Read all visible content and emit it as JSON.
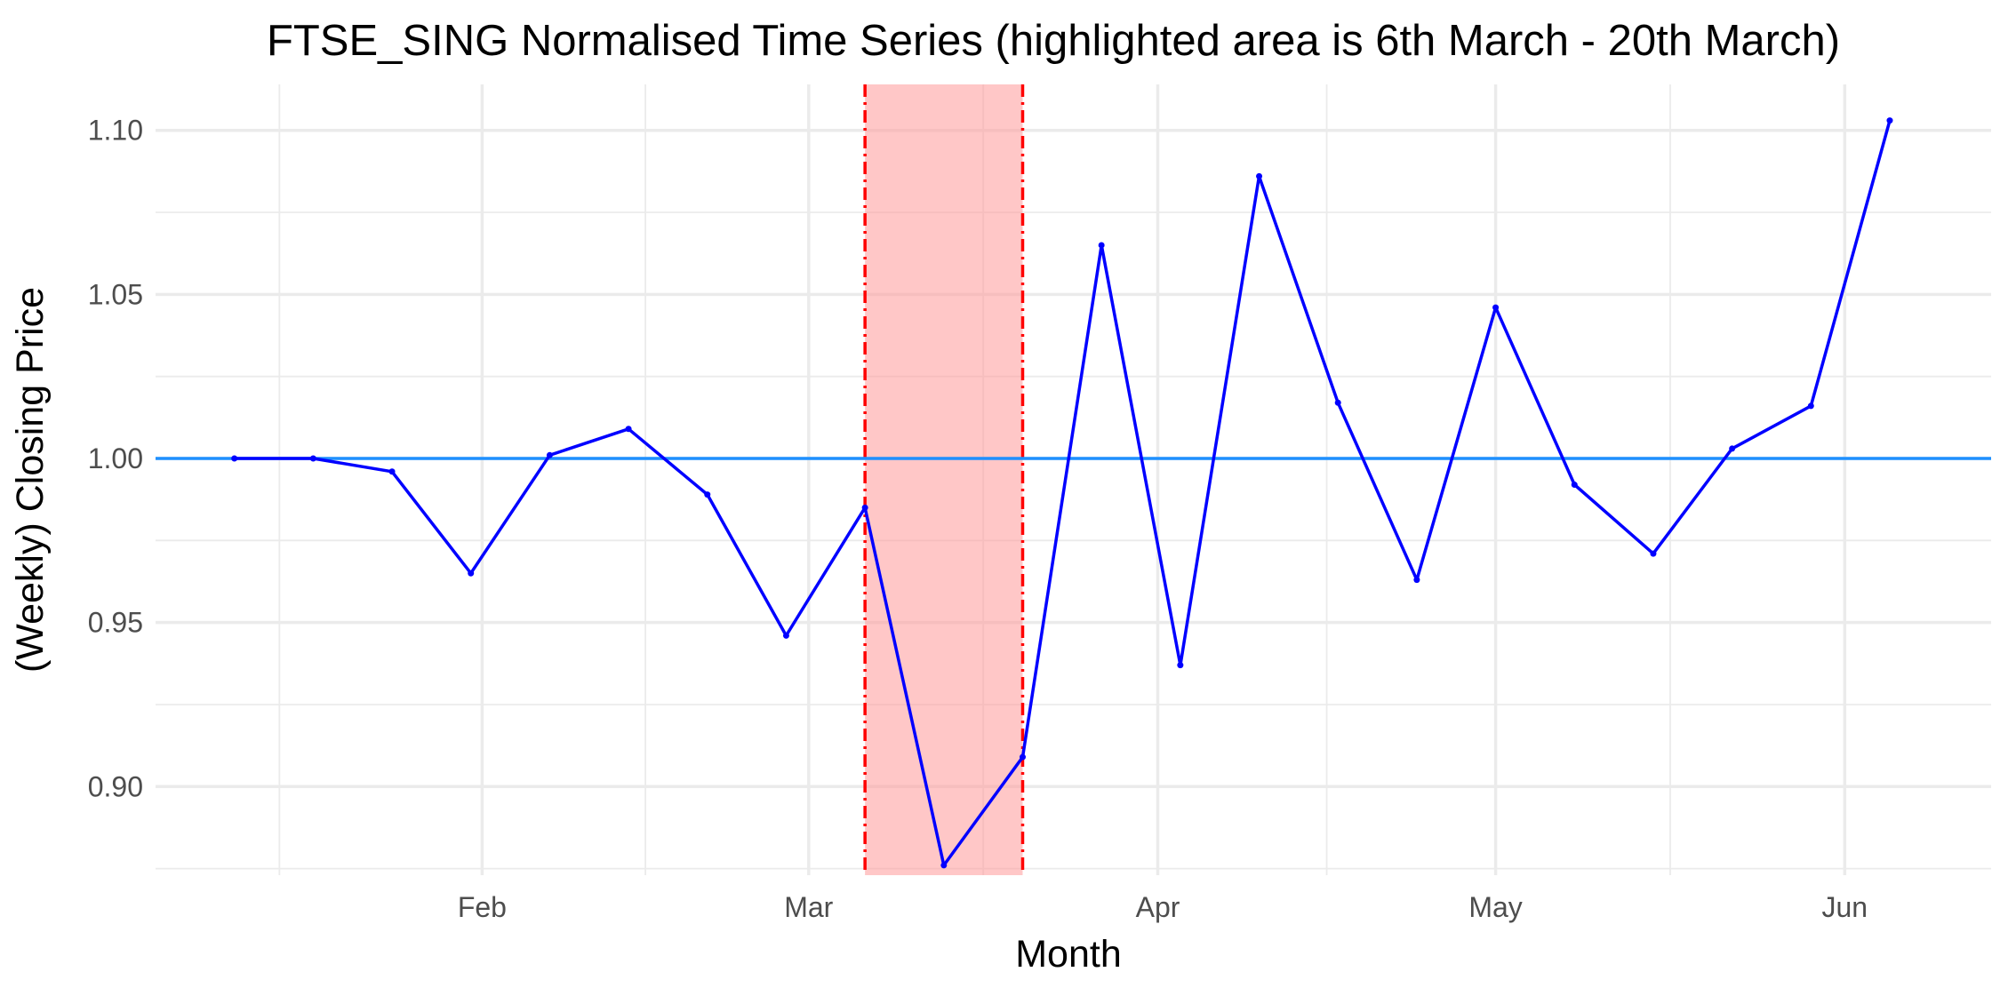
{
  "chart_data": {
    "type": "line",
    "title": "FTSE_SING Normalised Time Series (highlighted area is 6th March - 20th March)",
    "xlabel": "Month",
    "ylabel": "(Weekly) Closing Price",
    "x_ticks": [
      {
        "date": "2020-02-01",
        "label": "Feb"
      },
      {
        "date": "2020-03-01",
        "label": "Mar"
      },
      {
        "date": "2020-04-01",
        "label": "Apr"
      },
      {
        "date": "2020-05-01",
        "label": "May"
      },
      {
        "date": "2020-06-01",
        "label": "Jun"
      }
    ],
    "xlim": [
      "2020-01-03",
      "2020-06-14"
    ],
    "y_ticks": [
      0.9,
      0.95,
      1.0,
      1.05,
      1.1
    ],
    "ylim": [
      0.873,
      1.114
    ],
    "grid": true,
    "series": [
      {
        "color": "#0000ff",
        "points": [
          {
            "x": "2020-01-10",
            "y": 1.0
          },
          {
            "x": "2020-01-17",
            "y": 1.0
          },
          {
            "x": "2020-01-24",
            "y": 0.996
          },
          {
            "x": "2020-01-31",
            "y": 0.965
          },
          {
            "x": "2020-02-07",
            "y": 1.001
          },
          {
            "x": "2020-02-14",
            "y": 1.009
          },
          {
            "x": "2020-02-21",
            "y": 0.989
          },
          {
            "x": "2020-02-28",
            "y": 0.946
          },
          {
            "x": "2020-03-06",
            "y": 0.985
          },
          {
            "x": "2020-03-13",
            "y": 0.876
          },
          {
            "x": "2020-03-20",
            "y": 0.909
          },
          {
            "x": "2020-03-27",
            "y": 1.065
          },
          {
            "x": "2020-04-03",
            "y": 0.937
          },
          {
            "x": "2020-04-10",
            "y": 1.086
          },
          {
            "x": "2020-04-17",
            "y": 1.017
          },
          {
            "x": "2020-04-24",
            "y": 0.963
          },
          {
            "x": "2020-05-01",
            "y": 1.046
          },
          {
            "x": "2020-05-08",
            "y": 0.992
          },
          {
            "x": "2020-05-15",
            "y": 0.971
          },
          {
            "x": "2020-05-22",
            "y": 1.003
          },
          {
            "x": "2020-05-29",
            "y": 1.016
          },
          {
            "x": "2020-06-05",
            "y": 1.103
          }
        ]
      }
    ],
    "reference_line": {
      "y": 1.0,
      "color": "#1e90ff"
    },
    "highlight": {
      "start": "2020-03-06",
      "end": "2020-03-20",
      "fill_color": "#ff9999",
      "border_color": "#ff0000"
    }
  }
}
